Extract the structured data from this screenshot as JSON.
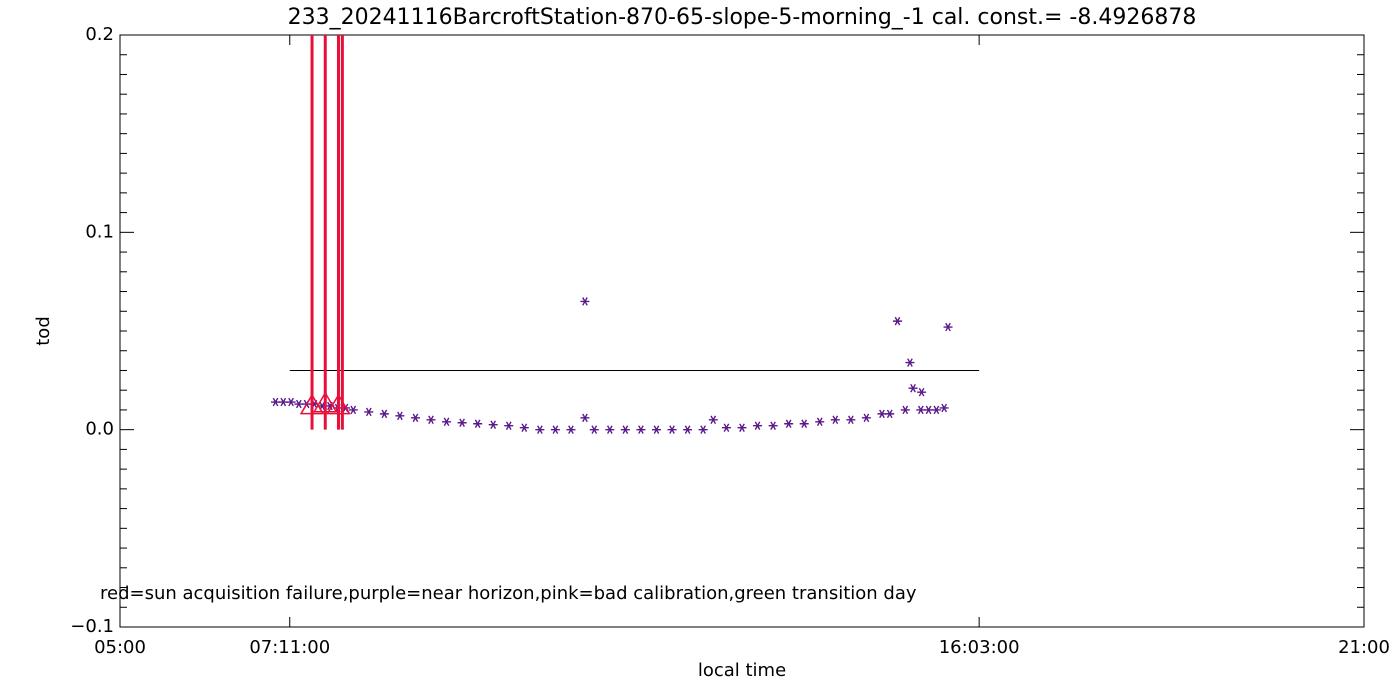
{
  "chart_data": {
    "type": "scatter",
    "title": "233_20241116BarcroftStation-870-65-slope-5-morning_-1 cal. const.= -8.4926878",
    "x_label": "local time",
    "y_label": "tod",
    "annotation": "red=sun acquisition failure,purple=near horizon,pink=bad calibration,green transition day",
    "xlim": [
      5,
      21
    ],
    "ylim": [
      -0.1,
      0.2
    ],
    "xticks": [
      {
        "value": 5,
        "label": "05:00"
      },
      {
        "value": 7.183333,
        "label": "07:11:00"
      },
      {
        "value": 16.05,
        "label": "16:03:00"
      },
      {
        "value": 21,
        "label": "21:00"
      }
    ],
    "yticks": [
      {
        "value": -0.1,
        "label": "−0.1"
      },
      {
        "value": 0,
        "label": "0.0"
      },
      0.1,
      0.2
    ],
    "y_minor_ticks": [
      -0.09,
      -0.08,
      -0.07,
      -0.06,
      -0.05,
      -0.04,
      -0.03,
      -0.02,
      -0.01,
      0.01,
      0.02,
      0.03,
      0.04,
      0.05,
      0.06,
      0.07,
      0.08,
      0.09,
      0.11,
      0.12,
      0.13,
      0.14,
      0.15,
      0.16,
      0.17,
      0.18,
      0.19
    ],
    "reference_line": {
      "y": 0.03,
      "x_start": 7.183333,
      "x_end": 16.05,
      "color": "#000000"
    },
    "axis_color": "#000000",
    "series": [
      {
        "marker": "star",
        "color": "#5a1a8c",
        "x": [
          7.0,
          7.1,
          7.2,
          7.3,
          7.4,
          7.5,
          7.6,
          7.7,
          7.8,
          7.9,
          8.0,
          8.2,
          8.4,
          8.6,
          8.8,
          9.0,
          9.2,
          9.4,
          9.6,
          9.8,
          10.0,
          10.2,
          10.4,
          10.6,
          10.8,
          10.98,
          10.98,
          11.1,
          11.3,
          11.5,
          11.7,
          11.9,
          12.1,
          12.3,
          12.5,
          12.63,
          12.8,
          13.0,
          13.2,
          13.4,
          13.6,
          13.8,
          14.0,
          14.2,
          14.4,
          14.6,
          14.8,
          14.9,
          15.0,
          15.1,
          15.16,
          15.2,
          15.3,
          15.31,
          15.4,
          15.5,
          15.6,
          15.65
        ],
        "values": [
          0.014,
          0.014,
          0.014,
          0.013,
          0.013,
          0.013,
          0.012,
          0.012,
          0.011,
          0.011,
          0.01,
          0.009,
          0.008,
          0.007,
          0.006,
          0.005,
          0.004,
          0.0035,
          0.003,
          0.0025,
          0.002,
          0.001,
          0.0,
          0.0,
          0.0,
          0.065,
          0.006,
          0.0,
          0.0,
          0.0,
          0.0,
          0.0,
          0.0,
          0.0,
          0.0,
          0.005,
          0.001,
          0.001,
          0.002,
          0.002,
          0.003,
          0.003,
          0.004,
          0.005,
          0.005,
          0.006,
          0.008,
          0.008,
          0.055,
          0.01,
          0.034,
          0.021,
          0.01,
          0.019,
          0.01,
          0.01,
          0.011,
          0.052
        ]
      },
      {
        "marker": "triangle",
        "color": "#e8103a",
        "x": [
          7.47,
          7.64,
          7.81
        ],
        "values": [
          0.012,
          0.013,
          0.012
        ]
      },
      {
        "marker": "vline",
        "color": "#e8103a",
        "x": [
          7.47,
          7.64,
          7.81,
          7.86
        ]
      }
    ]
  }
}
